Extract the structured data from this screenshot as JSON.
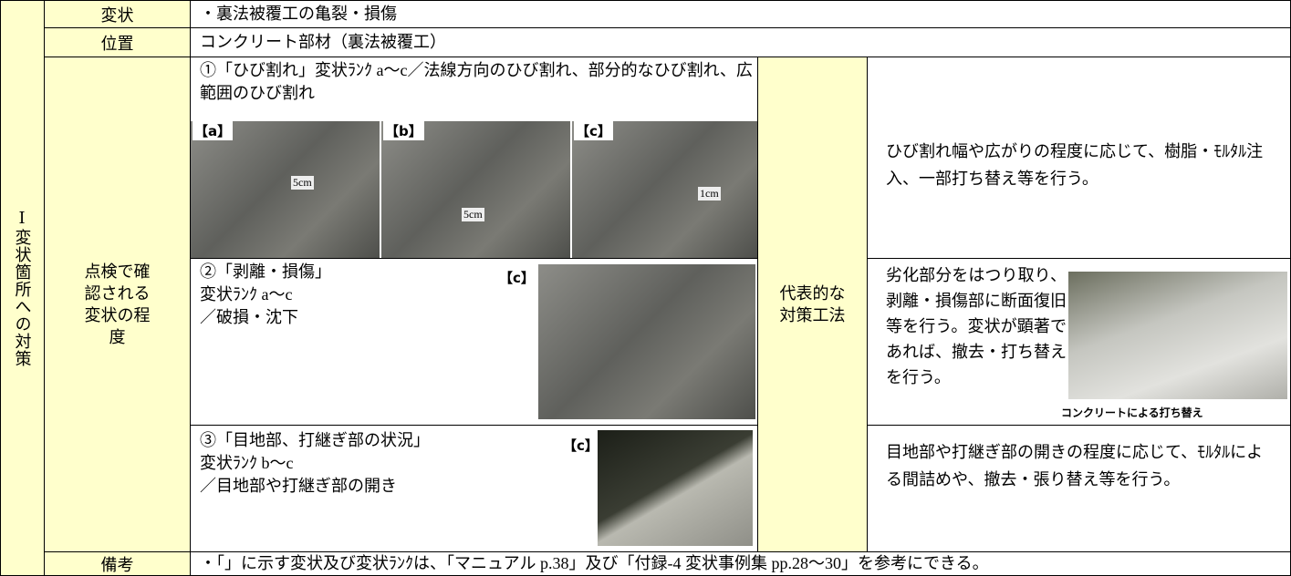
{
  "side_label": "Ⅰ変状箇所への対策",
  "rows": [
    {
      "header": "変状",
      "content": "・裏法被覆工の亀裂・損傷"
    },
    {
      "header": "位置",
      "content": "コンクリート部材（裏法被覆工）"
    }
  ],
  "inspection": {
    "header": "点検で確認される変状の程度",
    "items": [
      {
        "lines": [
          "①「ひび割れ」変状ﾗﾝｸ a～c／法線方向のひび割れ、部分的なひび割れ、広範囲のひび割れ"
        ],
        "photos": [
          {
            "label": "【a】",
            "note": "5cm"
          },
          {
            "label": "【b】",
            "note": "5cm"
          },
          {
            "label": "【c】",
            "note": "1cm"
          }
        ]
      },
      {
        "lines": [
          "②「剥離・損傷」",
          "変状ﾗﾝｸ a～c",
          "／破損・沈下"
        ],
        "photos": [
          {
            "label": "【c】"
          }
        ]
      },
      {
        "lines": [
          "③「目地部、打継ぎ部の状況」",
          "変状ﾗﾝｸ b～c",
          "／目地部や打継ぎ部の開き"
        ],
        "photos": [
          {
            "label": "【c】"
          }
        ]
      }
    ]
  },
  "measures": {
    "header": "代表的な対策工法",
    "items": [
      {
        "text": "ひび割れ幅や広がりの程度に応じて、樹脂・ﾓﾙﾀﾙ注入、一部打ち替え等を行う。"
      },
      {
        "text": "劣化部分をはつり取り、剥離・損傷部に断面復旧等を行う。変状が顕著であれば、撤去・打ち替えを行う。",
        "photo_caption": "コンクリートによる打ち替え"
      },
      {
        "text": "目地部や打継ぎ部の開きの程度に応じて、ﾓﾙﾀﾙによる間詰めや、撤去・張り替え等を行う。"
      }
    ]
  },
  "remarks": {
    "header": "備考",
    "content": "・「」に示す変状及び変状ﾗﾝｸは、「マニュアル p.38」及び「付録-4 変状事例集 pp.28～30」を参考にできる。"
  }
}
